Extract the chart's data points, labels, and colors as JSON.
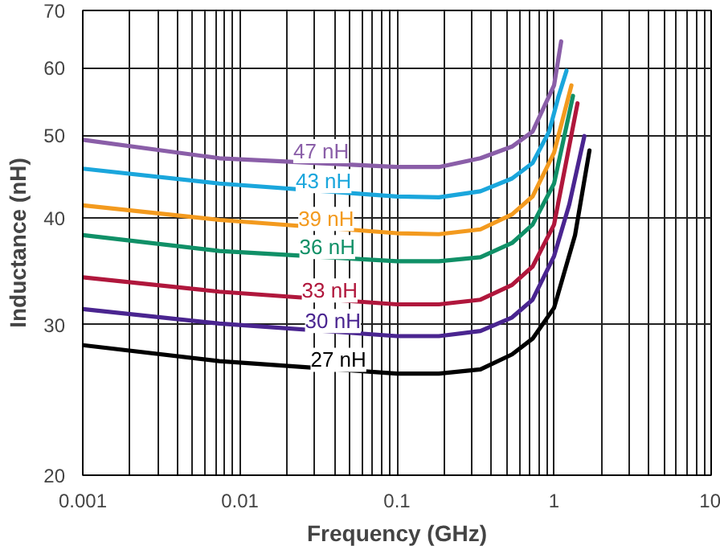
{
  "chart_data": {
    "type": "line",
    "xlabel": "Frequency (GHz)",
    "ylabel": "Inductance (nH)",
    "log": "xy",
    "grid": true,
    "line_style": "solid",
    "xlim": [
      0.001,
      10
    ],
    "ylim": [
      20,
      70
    ],
    "xticks": [
      0.001,
      {
        "value": 0.002,
        "label": null
      },
      {
        "value": 0.003,
        "label": null
      },
      {
        "value": 0.004,
        "label": null
      },
      {
        "value": 0.005,
        "label": null
      },
      {
        "value": 0.006,
        "label": null
      },
      {
        "value": 0.007,
        "label": null
      },
      {
        "value": 0.008,
        "label": null
      },
      {
        "value": 0.009,
        "label": null
      },
      0.01,
      {
        "value": 0.02,
        "label": null
      },
      {
        "value": 0.03,
        "label": null
      },
      {
        "value": 0.04,
        "label": null
      },
      {
        "value": 0.05,
        "label": null
      },
      {
        "value": 0.06,
        "label": null
      },
      {
        "value": 0.07,
        "label": null
      },
      {
        "value": 0.08,
        "label": null
      },
      {
        "value": 0.09,
        "label": null
      },
      0.1,
      {
        "value": 0.2,
        "label": null
      },
      {
        "value": 0.3,
        "label": null
      },
      {
        "value": 0.4,
        "label": null
      },
      {
        "value": 0.5,
        "label": null
      },
      {
        "value": 0.6,
        "label": null
      },
      {
        "value": 0.7,
        "label": null
      },
      {
        "value": 0.8,
        "label": null
      },
      {
        "value": 0.9,
        "label": null
      },
      1,
      {
        "value": 2,
        "label": null
      },
      {
        "value": 3,
        "label": null
      },
      {
        "value": 4,
        "label": null
      },
      {
        "value": 5,
        "label": null
      },
      {
        "value": 6,
        "label": null
      },
      {
        "value": 7,
        "label": null
      },
      {
        "value": 8,
        "label": null
      },
      {
        "value": 9,
        "label": null
      },
      10
    ],
    "yticks": [
      20,
      30,
      40,
      50,
      60,
      70
    ],
    "series": [
      {
        "color": "#8a5ea8",
        "x": [
          0.001,
          0.0074,
          0.1,
          0.185,
          0.34,
          0.54,
          0.73,
          1.0,
          1.11
        ],
        "values": [
          49.4,
          47.0,
          45.9,
          45.9,
          47.0,
          48.5,
          50.5,
          57.2,
          64.4
        ]
      },
      {
        "color": "#1aa6dc",
        "x": [
          0.001,
          0.0074,
          0.1,
          0.185,
          0.34,
          0.54,
          0.73,
          0.93,
          1.07,
          1.2
        ],
        "values": [
          45.7,
          43.9,
          42.4,
          42.3,
          43.0,
          44.5,
          46.4,
          50.5,
          55.6,
          59.5
        ]
      },
      {
        "color": "#f39a1e",
        "x": [
          0.001,
          0.0074,
          0.1,
          0.185,
          0.34,
          0.54,
          0.73,
          1.0,
          1.29
        ],
        "values": [
          41.4,
          39.8,
          38.4,
          38.3,
          38.8,
          40.4,
          42.4,
          47.7,
          57.2
        ]
      },
      {
        "color": "#109067",
        "x": [
          0.001,
          0.0074,
          0.1,
          0.185,
          0.34,
          0.54,
          0.73,
          1.0,
          1.32
        ],
        "values": [
          38.2,
          36.6,
          35.6,
          35.6,
          36.0,
          37.4,
          39.3,
          43.9,
          55.6
        ]
      },
      {
        "color": "#b0173c",
        "x": [
          0.001,
          0.0074,
          0.1,
          0.185,
          0.34,
          0.54,
          0.73,
          1.0,
          1.41
        ],
        "values": [
          34.1,
          32.8,
          31.7,
          31.7,
          32.1,
          33.4,
          35.1,
          39.3,
          54.5
        ]
      },
      {
        "color": "#4a2590",
        "x": [
          0.001,
          0.0074,
          0.1,
          0.185,
          0.34,
          0.54,
          0.73,
          1.0,
          1.25,
          1.56
        ],
        "values": [
          31.3,
          30.1,
          29.1,
          29.1,
          29.5,
          30.6,
          32.1,
          36.1,
          41.5,
          49.9
        ]
      },
      {
        "color": "#000000",
        "x": [
          0.001,
          0.0074,
          0.1,
          0.185,
          0.34,
          0.54,
          0.73,
          1.0,
          1.36,
          1.68
        ],
        "values": [
          28.4,
          27.2,
          26.3,
          26.3,
          26.6,
          27.7,
          28.9,
          31.4,
          38.2,
          48.0
        ]
      }
    ],
    "annotations": [
      {
        "text": "47 nH",
        "x": 0.0329,
        "y": 47.9
      },
      {
        "text": "43 nH",
        "x": 0.0341,
        "y": 44.2
      },
      {
        "text": "39 nH",
        "x": 0.0354,
        "y": 39.9
      },
      {
        "text": "36 nH",
        "x": 0.036,
        "y": 37.0
      },
      {
        "text": "33 nH",
        "x": 0.0373,
        "y": 32.9
      },
      {
        "text": "30 nH",
        "x": 0.0391,
        "y": 30.3
      },
      {
        "text": "27 nH",
        "x": 0.0424,
        "y": 27.3
      }
    ]
  }
}
